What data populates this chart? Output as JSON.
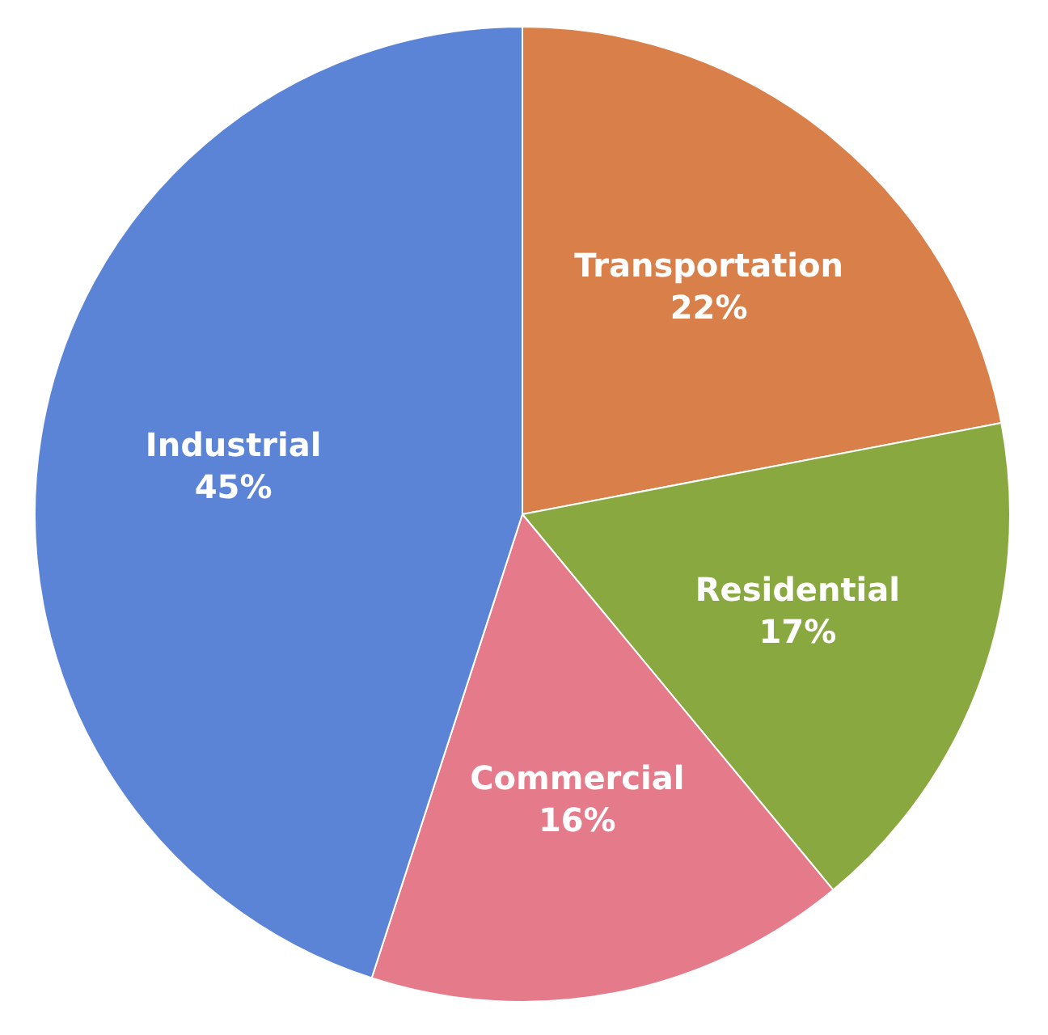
{
  "chart_data": {
    "type": "pie",
    "categories": [
      "Transportation",
      "Residential",
      "Commercial",
      "Industrial"
    ],
    "values": [
      22,
      17,
      16,
      45
    ],
    "value_labels": [
      "22%",
      "17%",
      "16%",
      "45%"
    ],
    "colors": [
      "#d9804a",
      "#8aa840",
      "#e57a8a",
      "#5b84d6"
    ],
    "legend": false
  }
}
